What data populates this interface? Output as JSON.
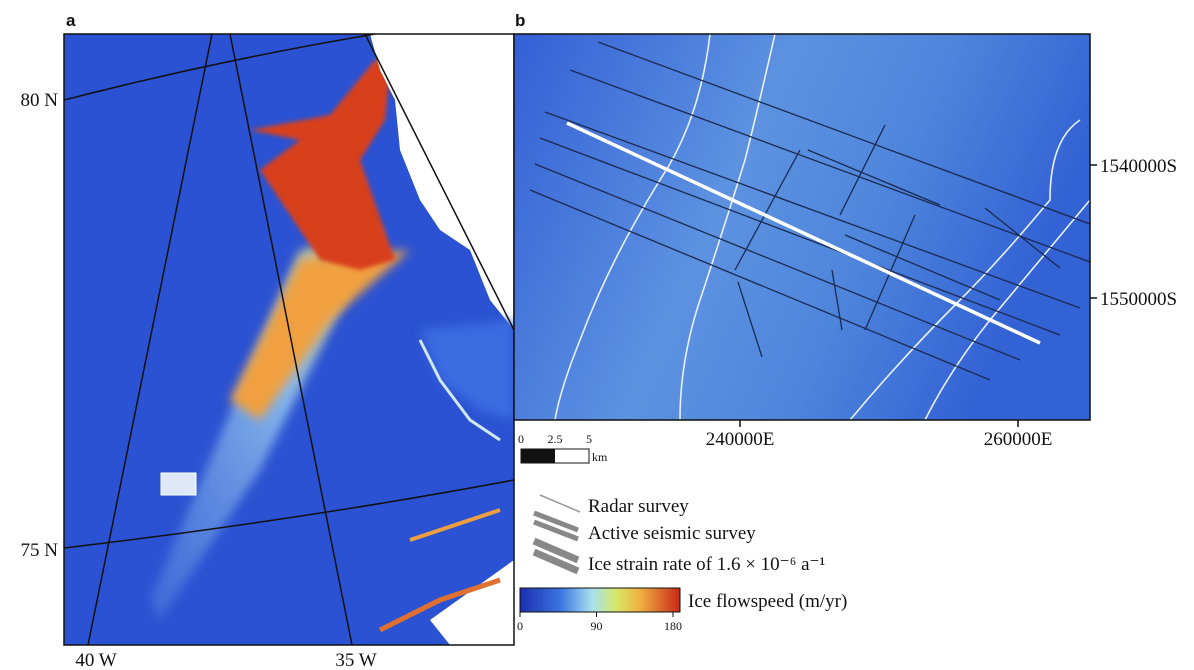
{
  "panel_a": {
    "label": "a",
    "lat_labels": [
      "80 N",
      "75 N"
    ],
    "lon_labels": [
      "40 W",
      "35 W"
    ]
  },
  "panel_b": {
    "label": "b",
    "y_labels": [
      "1540000S",
      "1550000S"
    ],
    "x_labels": [
      "240000E",
      "260000E"
    ]
  },
  "scale_bar": {
    "ticks": [
      "0",
      "2.5",
      "5"
    ],
    "unit": "km"
  },
  "legend": {
    "items": [
      "Radar survey",
      "Active seismic survey",
      "Ice strain rate of 1.6 × 10⁻⁶ a⁻¹"
    ]
  },
  "colorbar": {
    "title": "Ice flowspeed (m/yr)",
    "ticks": [
      0,
      90,
      180
    ]
  }
}
